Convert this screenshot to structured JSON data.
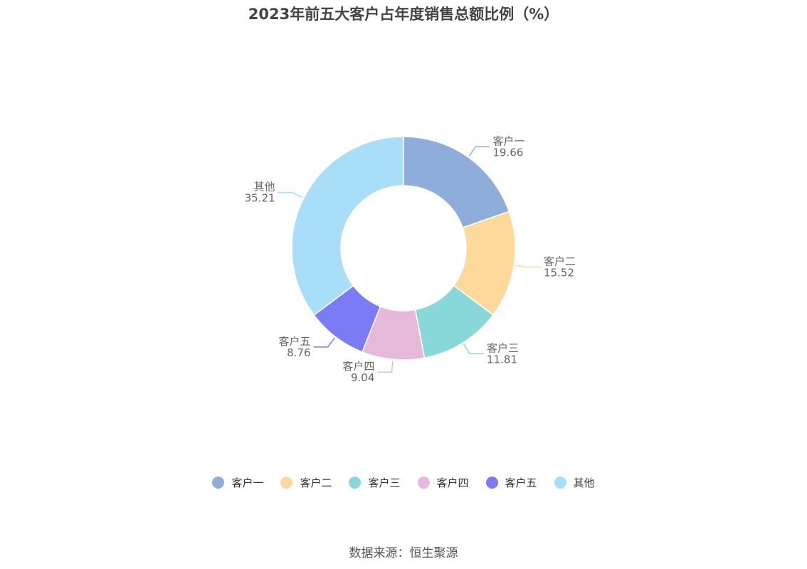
{
  "title": "2023年前五大客户占年度销售总额比例（%）",
  "source": "数据来源：恒生聚源",
  "chart_data": {
    "type": "pie",
    "variant": "donut",
    "title": "2023年前五大客户占年度销售总额比例（%）",
    "legend_position": "bottom",
    "slices": [
      {
        "name": "客户一",
        "value": 19.66,
        "value_label": "19.66",
        "color": "#8fadda"
      },
      {
        "name": "客户二",
        "value": 15.52,
        "value_label": "15.52",
        "color": "#ffd99b"
      },
      {
        "name": "客户三",
        "value": 11.81,
        "value_label": "11.81",
        "color": "#88d7d9"
      },
      {
        "name": "客户四",
        "value": 9.04,
        "value_label": "9.04",
        "color": "#e6b9da"
      },
      {
        "name": "客户五",
        "value": 8.76,
        "value_label": "8.76",
        "color": "#7b7cf5"
      },
      {
        "name": "其他",
        "value": 35.21,
        "value_label": "35.21",
        "color": "#a9def9"
      }
    ]
  }
}
